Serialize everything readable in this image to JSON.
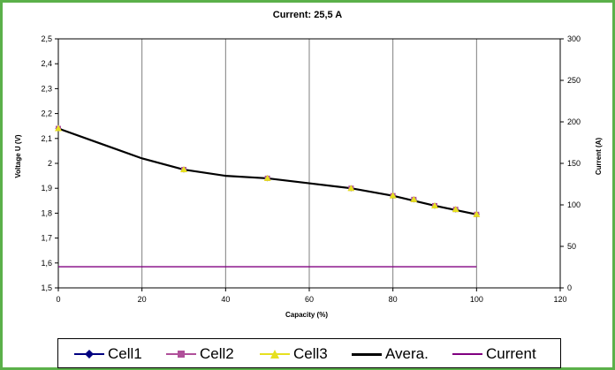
{
  "chart_data": {
    "type": "line",
    "title": "Current: 25,5 A",
    "xlabel": "Capacity (%)",
    "ylabel": "Voltage U (V)",
    "y2label": "Current (A)",
    "xlim": [
      0,
      120
    ],
    "ylim": [
      1.5,
      2.5
    ],
    "y2lim": [
      0,
      300
    ],
    "x_ticks": [
      "0",
      "20",
      "40",
      "60",
      "80",
      "100",
      "120"
    ],
    "y_ticks": [
      "1,5",
      "1,6",
      "1,7",
      "1,8",
      "1,9",
      "2",
      "2,1",
      "2,2",
      "2,3",
      "2,4",
      "2,5"
    ],
    "y2_ticks": [
      "0",
      "50",
      "100",
      "150",
      "200",
      "250",
      "300"
    ],
    "grid": "vertical",
    "legend_position": "bottom",
    "series": [
      {
        "name": "Cell1",
        "color": "#000080",
        "marker": "diamond",
        "axis": "left",
        "x": [
          0,
          30,
          50,
          70,
          80,
          85,
          90,
          95,
          100
        ],
        "y": [
          2.14,
          1.975,
          1.94,
          1.9,
          1.87,
          1.855,
          1.83,
          1.815,
          1.795
        ]
      },
      {
        "name": "Cell2",
        "color": "#b0509a",
        "marker": "square",
        "axis": "left",
        "x": [
          0,
          30,
          50,
          70,
          80,
          85,
          90,
          95,
          100
        ],
        "y": [
          2.14,
          1.975,
          1.94,
          1.9,
          1.87,
          1.855,
          1.83,
          1.815,
          1.795
        ]
      },
      {
        "name": "Cell3",
        "color": "#e6e020",
        "marker": "triangle",
        "axis": "left",
        "x": [
          0,
          30,
          50,
          70,
          80,
          85,
          90,
          95,
          100
        ],
        "y": [
          2.14,
          1.975,
          1.94,
          1.9,
          1.87,
          1.855,
          1.83,
          1.815,
          1.795
        ]
      },
      {
        "name": "Avera.",
        "color": "#000000",
        "marker": "none",
        "axis": "left",
        "x": [
          0,
          10,
          20,
          30,
          40,
          50,
          60,
          70,
          80,
          90,
          100
        ],
        "y": [
          2.14,
          2.08,
          2.02,
          1.975,
          1.95,
          1.94,
          1.92,
          1.9,
          1.87,
          1.83,
          1.795
        ]
      },
      {
        "name": "Current",
        "color": "#800080",
        "marker": "none",
        "axis": "right",
        "x": [
          0,
          100
        ],
        "y": [
          25.5,
          25.5
        ]
      }
    ]
  }
}
